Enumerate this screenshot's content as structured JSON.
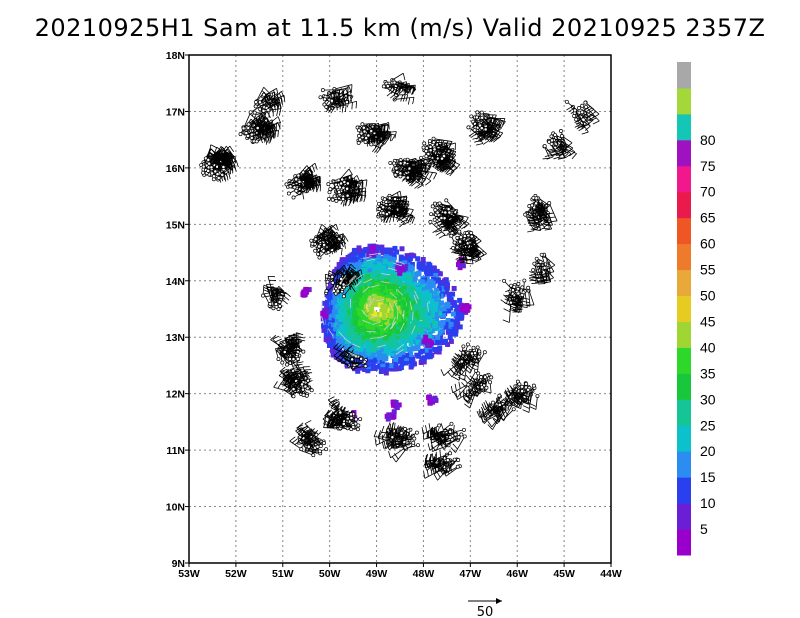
{
  "chart_data": {
    "type": "vector wind map with filled contours",
    "title": "20210925H1 Sam at 11.5 km (m/s) Valid 20210925 2357Z",
    "x_ticks": [
      "53W",
      "52W",
      "51W",
      "50W",
      "49W",
      "48W",
      "47W",
      "46W",
      "45W",
      "44W"
    ],
    "y_ticks": [
      "9N",
      "10N",
      "11N",
      "12N",
      "13N",
      "14N",
      "15N",
      "16N",
      "17N",
      "18N"
    ],
    "xlim": [
      -53,
      -44
    ],
    "ylim": [
      9,
      18
    ],
    "grid": "dotted",
    "storm_center": {
      "lon": -49.0,
      "lat": 13.5
    },
    "colorbar": {
      "labels": [
        "5",
        "10",
        "15",
        "20",
        "25",
        "30",
        "35",
        "40",
        "45",
        "50",
        "55",
        "60",
        "65",
        "70",
        "75",
        "80"
      ],
      "levels": [
        0,
        5,
        10,
        15,
        20,
        25,
        30,
        35,
        40,
        45,
        50,
        55,
        60,
        65,
        70,
        75,
        80,
        85
      ],
      "colors": [
        "#9900cc",
        "#6a1fd6",
        "#2a3ff0",
        "#2b8cf2",
        "#0cc0cc",
        "#15c596",
        "#19c83a",
        "#2ed82a",
        "#9fd634",
        "#e6cc22",
        "#e8a83a",
        "#ee7a2c",
        "#f05524",
        "#ea1a4c",
        "#f0188c",
        "#a012c0",
        "#14c6b6",
        "#a4d83a",
        "#a8a8a8"
      ]
    },
    "reference_vector": {
      "label": "50",
      "speed": 50
    }
  }
}
